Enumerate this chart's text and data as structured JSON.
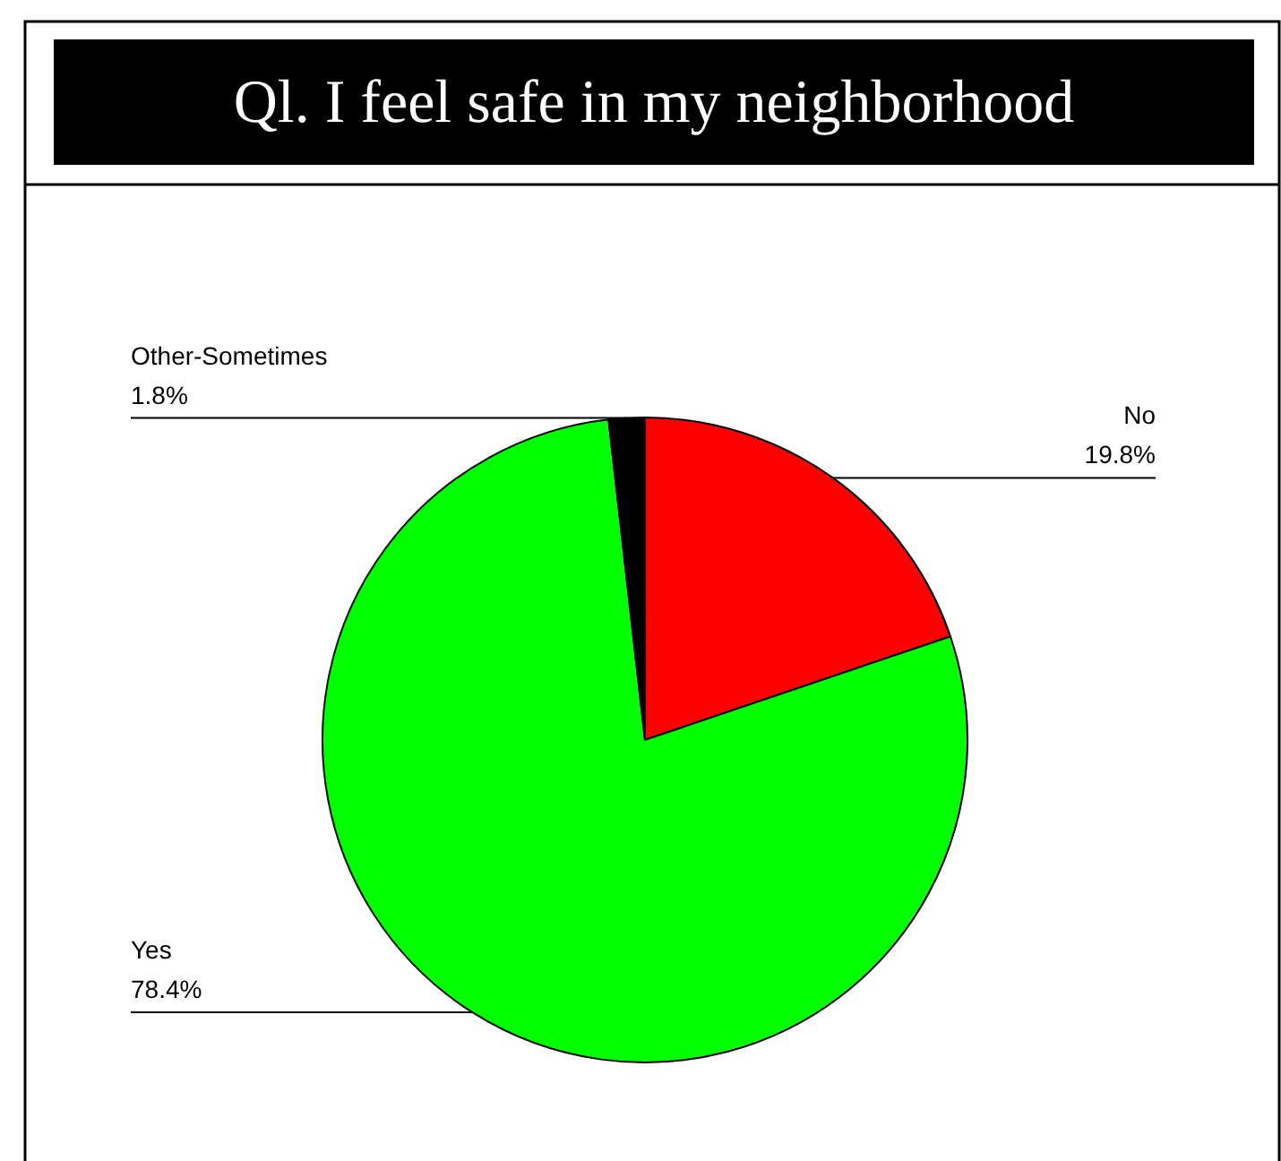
{
  "chart_data": {
    "type": "pie",
    "title": "Ql. I feel safe in my neighborhood",
    "categories": [
      "No",
      "Yes",
      "Other-Sometimes"
    ],
    "values": [
      19.8,
      78.4,
      1.8
    ],
    "colors": [
      "#ff0000",
      "#00ff00",
      "#000000"
    ],
    "value_labels": [
      "19.8%",
      "78.4%",
      "1.8%"
    ]
  }
}
